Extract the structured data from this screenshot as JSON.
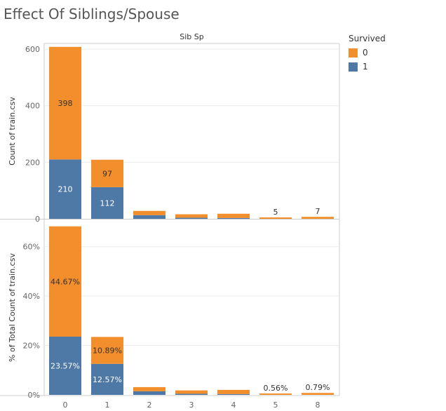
{
  "title": "Effect Of Siblings/Spouse",
  "chart_data": {
    "type": "bar",
    "stacked": true,
    "column_header": "Sib Sp",
    "categories": [
      "0",
      "1",
      "2",
      "3",
      "4",
      "5",
      "8"
    ],
    "legend": {
      "title": "Survived",
      "placement": "top-right",
      "items": [
        {
          "label": "0",
          "color": "#f28e2b"
        },
        {
          "label": "1",
          "color": "#4e79a7"
        }
      ]
    },
    "panels": [
      {
        "ylabel": "Count of train.csv",
        "ylim": [
          0,
          620
        ],
        "yticks": [
          0,
          200,
          400,
          600
        ],
        "yticklabels": [
          "0",
          "200",
          "400",
          "600"
        ],
        "series": [
          {
            "name": "1",
            "color": "#4e79a7",
            "values": [
              210,
              112,
              13,
              4,
              3,
              0,
              0
            ],
            "labels": [
              "210",
              "112",
              "",
              "",
              "",
              "",
              ""
            ]
          },
          {
            "name": "0",
            "color": "#f28e2b",
            "values": [
              398,
              97,
              15,
              12,
              15,
              5,
              7
            ],
            "labels": [
              "398",
              "97",
              "",
              "",
              "",
              "5",
              "7"
            ]
          }
        ]
      },
      {
        "ylabel": "% of Total Count of train.csv",
        "ylim": [
          0,
          71
        ],
        "yticks": [
          0,
          20,
          40,
          60
        ],
        "yticklabels": [
          "0%",
          "20%",
          "40%",
          "60%"
        ],
        "series": [
          {
            "name": "1",
            "color": "#4e79a7",
            "values": [
              23.57,
              12.57,
              1.46,
              0.45,
              0.34,
              0,
              0
            ],
            "labels": [
              "23.57%",
              "12.57%",
              "",
              "",
              "",
              "",
              ""
            ]
          },
          {
            "name": "0",
            "color": "#f28e2b",
            "values": [
              44.67,
              10.89,
              1.68,
              1.35,
              1.68,
              0.56,
              0.79
            ],
            "labels": [
              "44.67%",
              "10.89%",
              "",
              "",
              "",
              "0.56%",
              "0.79%"
            ]
          }
        ]
      }
    ]
  }
}
